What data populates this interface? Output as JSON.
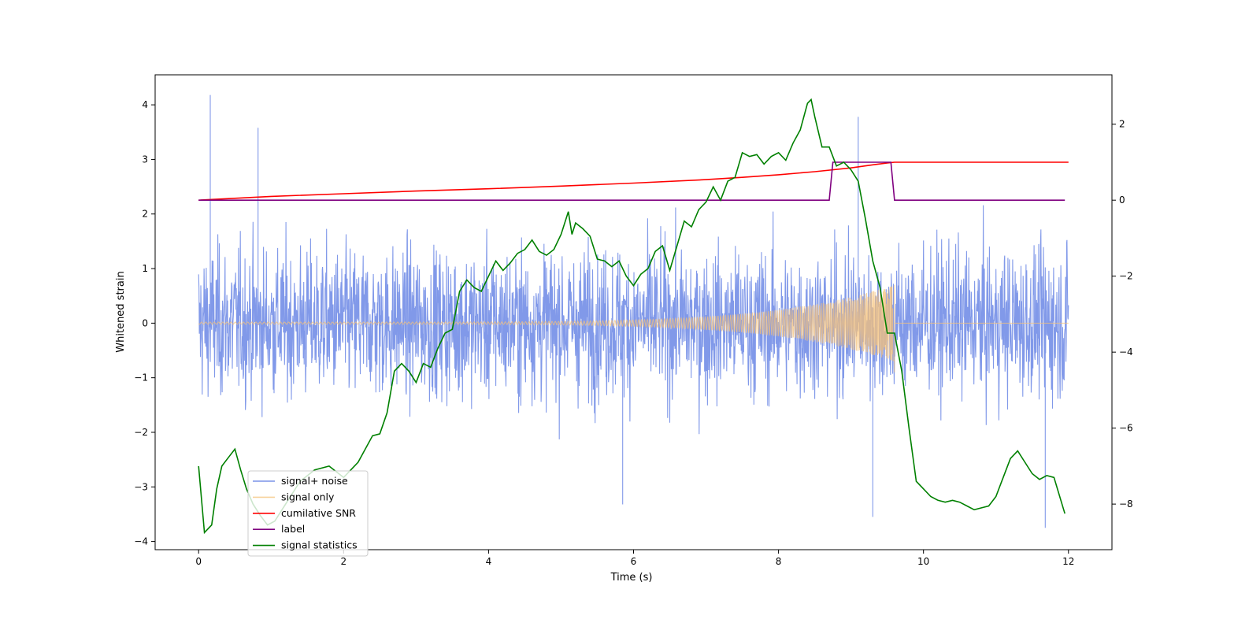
{
  "chart_data": {
    "type": "line",
    "title": "",
    "xlabel": "Time (s)",
    "ylabel": "Whitened strain",
    "xlim": [
      -0.6,
      12.6
    ],
    "ylim": [
      -4.15,
      4.55
    ],
    "y2lim": [
      -9.2,
      3.3
    ],
    "x_ticks": [
      0,
      2,
      4,
      6,
      8,
      10,
      12
    ],
    "y_ticks": [
      -4,
      -3,
      -2,
      -1,
      0,
      1,
      2,
      3,
      4
    ],
    "y2_ticks": [
      -8,
      -6,
      -4,
      -2,
      0,
      2
    ],
    "legend_position": "lower-left",
    "series": [
      {
        "name": "signal+ noise",
        "color": "#7a93e8",
        "axis": "left",
        "description": "Whitened strain sampled densely from 0 to 12 s, mostly within about ±2 with spikes to about 4.2 and -3.7",
        "envelope": {
          "x": [
            0,
            12
          ],
          "typical_abs": 2.0,
          "max": 4.2,
          "min": -3.75
        },
        "spikes": [
          {
            "x": 0.16,
            "y": 4.18
          },
          {
            "x": 0.82,
            "y": 3.58
          },
          {
            "x": 9.1,
            "y": 3.78
          },
          {
            "x": 11.68,
            "y": -3.75
          },
          {
            "x": 9.3,
            "y": -3.55
          },
          {
            "x": 5.85,
            "y": -3.32
          }
        ]
      },
      {
        "name": "signal only",
        "color": "#f5c27a",
        "axis": "left",
        "description": "Chirp growing from ~0.02 amplitude at t=0 to ~0.7 at t=9.6 s, then zero",
        "chirp": {
          "t_start": 0,
          "t_merge": 9.6,
          "amp_start": 0.02,
          "amp_end": 0.7,
          "amp_min_end": -0.9
        }
      },
      {
        "name": "cumilative SNR",
        "color": "#ff0000",
        "axis": "right",
        "x": [
          0,
          1,
          2,
          3,
          4,
          5,
          6,
          7,
          7.5,
          8,
          8.5,
          9,
          9.3,
          9.5,
          9.6,
          12
        ],
        "y": [
          0,
          0.1,
          0.17,
          0.24,
          0.3,
          0.37,
          0.45,
          0.54,
          0.6,
          0.67,
          0.75,
          0.85,
          0.93,
          0.98,
          1.0,
          1.0
        ]
      },
      {
        "name": "label",
        "color": "#800080",
        "axis": "right",
        "x": [
          0,
          8.7,
          8.75,
          9.55,
          9.6,
          11.95
        ],
        "y": [
          0,
          0,
          1,
          1,
          0,
          0
        ]
      },
      {
        "name": "signal statistics",
        "color": "#008000",
        "axis": "right",
        "x": [
          0,
          0.08,
          0.18,
          0.25,
          0.32,
          0.42,
          0.5,
          0.58,
          0.66,
          0.75,
          0.85,
          0.95,
          1.05,
          1.2,
          1.4,
          1.6,
          1.8,
          2.0,
          2.2,
          2.4,
          2.5,
          2.6,
          2.7,
          2.8,
          2.9,
          3.0,
          3.1,
          3.2,
          3.3,
          3.4,
          3.5,
          3.6,
          3.7,
          3.8,
          3.9,
          4.0,
          4.1,
          4.2,
          4.3,
          4.4,
          4.5,
          4.6,
          4.7,
          4.8,
          4.9,
          5.0,
          5.1,
          5.15,
          5.2,
          5.3,
          5.4,
          5.5,
          5.6,
          5.7,
          5.8,
          5.9,
          6.0,
          6.1,
          6.2,
          6.3,
          6.4,
          6.5,
          6.6,
          6.7,
          6.8,
          6.9,
          7.0,
          7.1,
          7.2,
          7.3,
          7.4,
          7.5,
          7.6,
          7.7,
          7.8,
          7.9,
          8.0,
          8.1,
          8.2,
          8.3,
          8.4,
          8.45,
          8.5,
          8.6,
          8.7,
          8.8,
          8.9,
          9.0,
          9.1,
          9.2,
          9.3,
          9.4,
          9.5,
          9.6,
          9.7,
          9.8,
          9.9,
          10.0,
          10.1,
          10.2,
          10.3,
          10.4,
          10.5,
          10.6,
          10.7,
          10.8,
          10.9,
          11.0,
          11.1,
          11.2,
          11.3,
          11.4,
          11.5,
          11.6,
          11.7,
          11.8,
          11.95
        ],
        "y": [
          -7.0,
          -8.75,
          -8.55,
          -7.6,
          -7.0,
          -6.75,
          -6.55,
          -7.1,
          -7.6,
          -8.0,
          -8.3,
          -8.55,
          -8.45,
          -8.0,
          -7.4,
          -7.1,
          -7.0,
          -7.3,
          -6.9,
          -6.2,
          -6.15,
          -5.6,
          -4.5,
          -4.3,
          -4.5,
          -4.8,
          -4.3,
          -4.4,
          -3.9,
          -3.5,
          -3.4,
          -2.4,
          -2.1,
          -2.3,
          -2.4,
          -2.0,
          -1.6,
          -1.85,
          -1.65,
          -1.4,
          -1.3,
          -1.05,
          -1.35,
          -1.45,
          -1.3,
          -0.9,
          -0.3,
          -0.9,
          -0.6,
          -0.75,
          -0.95,
          -1.55,
          -1.6,
          -1.75,
          -1.6,
          -2.0,
          -2.25,
          -1.95,
          -1.8,
          -1.35,
          -1.2,
          -1.85,
          -1.2,
          -0.55,
          -0.7,
          -0.25,
          -0.05,
          0.35,
          0.0,
          0.5,
          0.6,
          1.25,
          1.15,
          1.2,
          0.95,
          1.15,
          1.25,
          1.05,
          1.5,
          1.85,
          2.55,
          2.65,
          2.2,
          1.4,
          1.4,
          0.9,
          1.0,
          0.8,
          0.5,
          -0.5,
          -1.6,
          -2.3,
          -3.5,
          -3.5,
          -4.5,
          -6.0,
          -7.4,
          -7.6,
          -7.8,
          -7.9,
          -7.95,
          -7.9,
          -7.95,
          -8.05,
          -8.15,
          -8.1,
          -8.05,
          -7.8,
          -7.3,
          -6.8,
          -6.6,
          -6.9,
          -7.2,
          -7.35,
          -7.25,
          -7.3,
          -8.25
        ]
      }
    ]
  }
}
